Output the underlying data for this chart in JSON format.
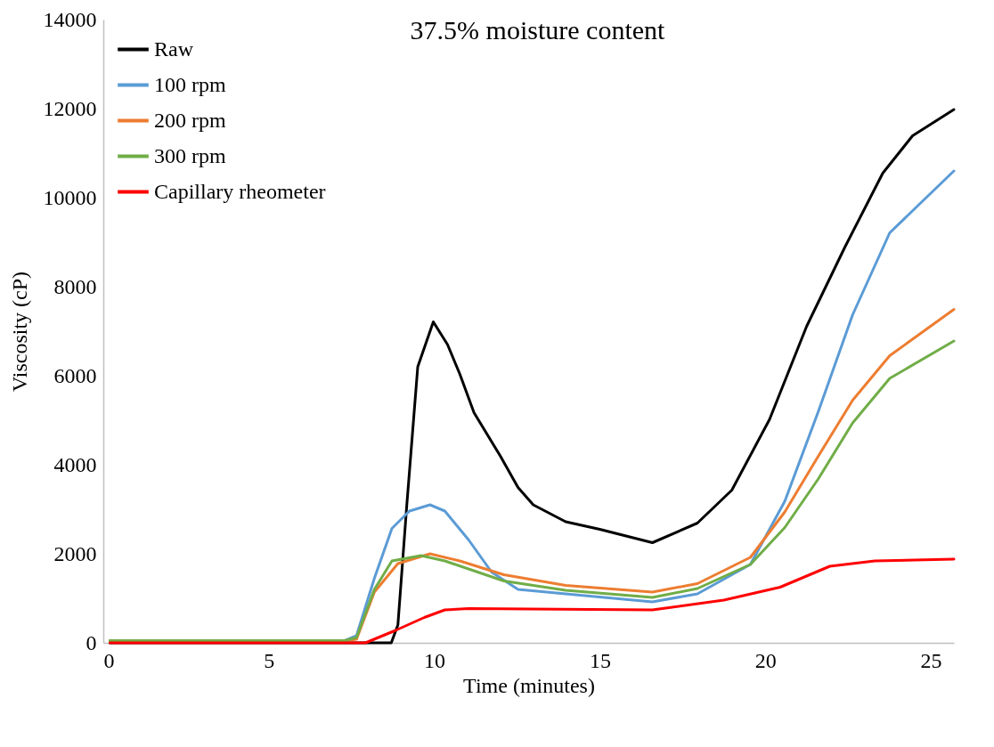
{
  "chart_data": {
    "type": "line",
    "title": "37.5% moisture content",
    "xlabel": "Time (minutes)",
    "ylabel": "Viscosity (cP)",
    "xlim": [
      0,
      25.7
    ],
    "xticks": [
      0,
      5,
      10,
      15,
      20,
      25
    ],
    "ylim": [
      0,
      14000
    ],
    "yticks": [
      0,
      2000,
      4000,
      6000,
      8000,
      10000,
      12000,
      14000
    ],
    "grid": false,
    "legend": "top left",
    "line_style": "solid",
    "series": [
      {
        "name": "Raw",
        "color": "#000000",
        "x": [
          0.2,
          4,
          8.5,
          8.7,
          8.9,
          9.17,
          9.5,
          9.97,
          10.4,
          10.77,
          11.2,
          12.0,
          12.53,
          12.99,
          13.97,
          15,
          16.59,
          17.95,
          18.99,
          20.13,
          21.25,
          22.4,
          23.55,
          24.45,
          25.7
        ],
        "values": [
          0,
          0,
          0,
          0,
          400,
          3100,
          6200,
          7210,
          6700,
          6040,
          5170,
          4190,
          3490,
          3100,
          2720,
          2550,
          2250,
          2690,
          3430,
          5020,
          7110,
          8880,
          10550,
          11390,
          11980
        ]
      },
      {
        "name": "100 rpm",
        "color": "#5b9bd5",
        "x": [
          0.2,
          7.3,
          7.65,
          8.19,
          8.72,
          9.25,
          9.87,
          10.32,
          11.04,
          11.73,
          12.53,
          13.97,
          16.59,
          17.95,
          19.55,
          20.59,
          21.6,
          22.64,
          23.76,
          25.7
        ],
        "values": [
          50,
          50,
          160,
          1450,
          2570,
          2960,
          3100,
          2960,
          2310,
          1590,
          1200,
          1100,
          920,
          1100,
          1760,
          3180,
          5190,
          7370,
          9210,
          10600
        ]
      },
      {
        "name": "200 rpm",
        "color": "#ed7d31",
        "x": [
          0.2,
          4,
          7.3,
          7.65,
          8.19,
          8.9,
          9.87,
          10.77,
          12.1,
          13.97,
          16.59,
          17.95,
          19.55,
          20.59,
          21.6,
          22.64,
          23.76,
          25.7
        ],
        "values": [
          50,
          50,
          50,
          80,
          1140,
          1780,
          2000,
          1840,
          1530,
          1290,
          1140,
          1330,
          1920,
          2940,
          4190,
          5450,
          6450,
          7490
        ]
      },
      {
        "name": "300 rpm",
        "color": "#70ad47",
        "x": [
          0.2,
          4,
          7.3,
          7.65,
          8.19,
          8.72,
          9.6,
          10.32,
          12.1,
          13.97,
          16.59,
          17.95,
          19.55,
          20.59,
          21.6,
          22.64,
          23.76,
          25.7
        ],
        "values": [
          50,
          50,
          50,
          120,
          1200,
          1840,
          1960,
          1840,
          1390,
          1180,
          1020,
          1220,
          1760,
          2590,
          3680,
          4940,
          5940,
          6780
        ]
      },
      {
        "name": "Capillary rheometer",
        "color": "#ff0000",
        "x": [
          0.2,
          4,
          7.5,
          7.92,
          8.8,
          9.7,
          10.32,
          11.04,
          16.59,
          18.75,
          20.45,
          21.95,
          23.31,
          25.7
        ],
        "values": [
          0,
          0,
          0,
          0,
          270,
          570,
          740,
          770,
          740,
          960,
          1250,
          1720,
          1840,
          1880
        ]
      }
    ]
  }
}
